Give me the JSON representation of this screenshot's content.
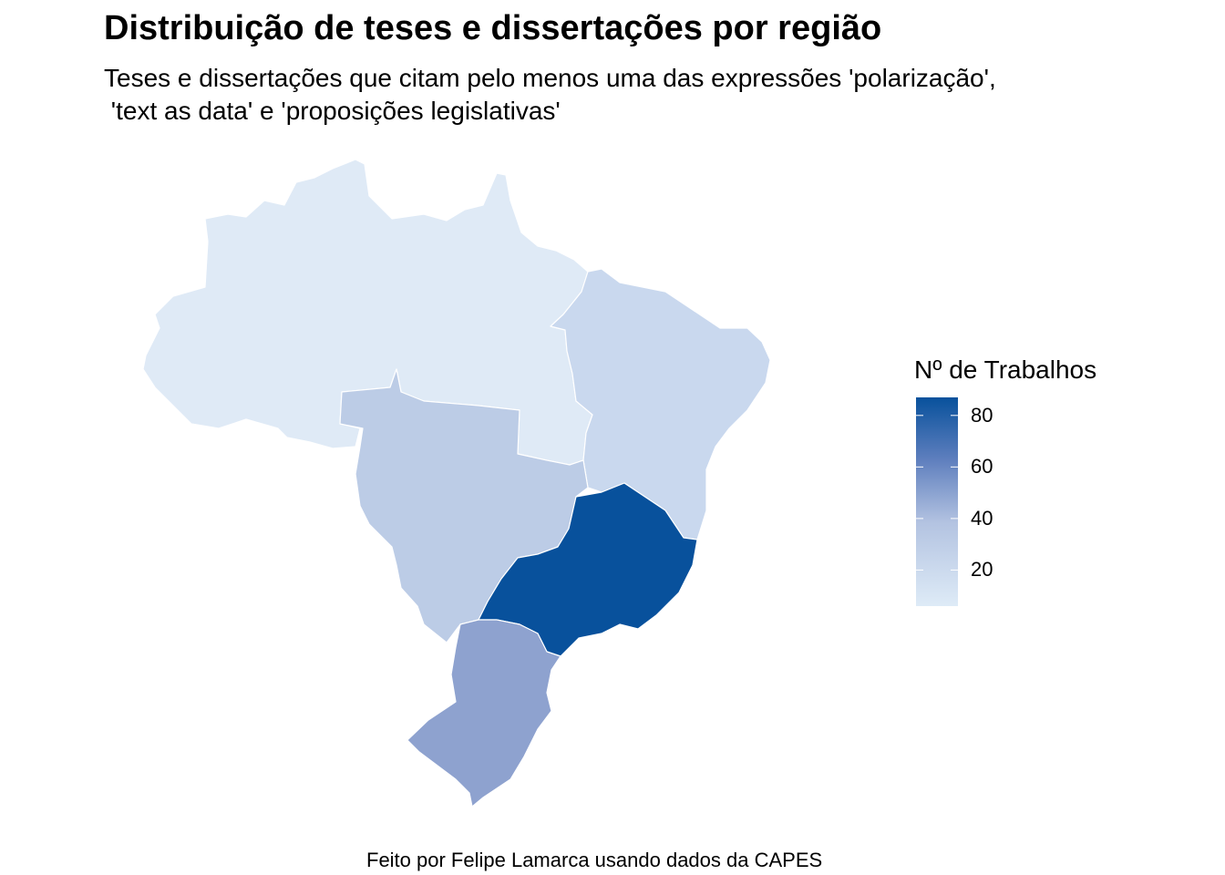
{
  "title": "Distribuição de teses e dissertações por região",
  "subtitle": "Teses e dissertações que citam pelo menos uma das expressões 'polarização',\n 'text as data' e 'proposições legislativas'",
  "caption": "Feito por Felipe Lamarca usando dados da CAPES",
  "legend": {
    "title": "Nº de Trabalhos",
    "min": 6,
    "max": 87,
    "low_color": "#deebf7",
    "high_color": "#08519c",
    "ticks": [
      {
        "value": 20,
        "label": "20"
      },
      {
        "value": 40,
        "label": "40"
      },
      {
        "value": 60,
        "label": "60"
      },
      {
        "value": 80,
        "label": "80"
      }
    ]
  },
  "map_data": {
    "type": "choropleth",
    "regions": [
      {
        "name": "Norte",
        "value": 6,
        "color": "#dfeaf6"
      },
      {
        "name": "Nordeste",
        "value": 17,
        "color": "#c9d8ee"
      },
      {
        "name": "Centro-Oeste",
        "value": 24,
        "color": "#bccce6"
      },
      {
        "name": "Sudeste",
        "value": 87,
        "color": "#08519c"
      },
      {
        "name": "Sul",
        "value": 43,
        "color": "#8ea2cf"
      }
    ]
  }
}
